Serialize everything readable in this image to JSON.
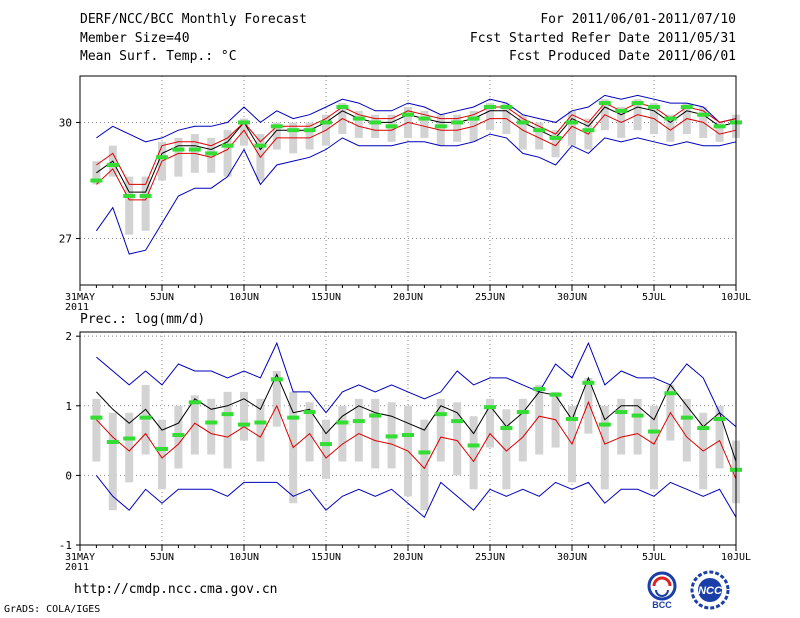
{
  "header": {
    "title": "DERF/NCC/BCC Monthly Forecast",
    "member_size": "Member Size=40",
    "variable1": "Mean Surf. Temp.: °C",
    "period": "For 2011/06/01-2011/07/10",
    "start_date": "Fcst Started Refer Date 2011/05/31",
    "produced_date": "Fcst Produced Date 2011/06/01"
  },
  "footer": {
    "url": "http://cmdp.ncc.cma.gov.cn",
    "credit": "GrADS: COLA/IGES",
    "logo_bcc": "BCC",
    "logo_ncc": "NCC"
  },
  "colors": {
    "box": "#d3d3d3",
    "median": "#33dd33",
    "mean": "#000000",
    "lower": "#dd0000",
    "env": "#0000bb"
  },
  "chart_data": [
    {
      "type": "line",
      "title": "Mean Surf. Temp.: °C",
      "x": [
        1,
        2,
        3,
        4,
        5,
        6,
        7,
        8,
        9,
        10,
        11,
        12,
        13,
        14,
        15,
        16,
        17,
        18,
        19,
        20,
        21,
        22,
        23,
        24,
        25,
        26,
        27,
        28,
        29,
        30,
        31,
        32,
        33,
        34,
        35,
        36,
        37,
        38,
        39,
        40
      ],
      "xlim": [
        0,
        40
      ],
      "ylim": [
        25.8,
        31.2
      ],
      "yticks": [
        27,
        30
      ],
      "xticks": [
        {
          "x": 0,
          "label": "31MAY"
        },
        {
          "x": 5,
          "label": "5JUN"
        },
        {
          "x": 10,
          "label": "10JUN"
        },
        {
          "x": 15,
          "label": "15JUN"
        },
        {
          "x": 20,
          "label": "20JUN"
        },
        {
          "x": 25,
          "label": "25JUN"
        },
        {
          "x": 30,
          "label": "30JUN"
        },
        {
          "x": 35,
          "label": "5JUL"
        },
        {
          "x": 40,
          "label": "10JUL"
        }
      ],
      "year_label": "2011",
      "series": [
        {
          "name": "upper envelope",
          "values": [
            29.6,
            29.9,
            29.7,
            29.5,
            29.6,
            29.8,
            29.9,
            29.9,
            30.0,
            30.4,
            30.0,
            30.3,
            30.1,
            30.2,
            30.4,
            30.6,
            30.5,
            30.3,
            30.3,
            30.5,
            30.4,
            30.2,
            30.3,
            30.4,
            30.6,
            30.5,
            30.2,
            30.1,
            30.0,
            30.3,
            30.4,
            30.7,
            30.6,
            30.7,
            30.6,
            30.5,
            30.5,
            30.4,
            30.0,
            30.1
          ]
        },
        {
          "name": "ensemble mean",
          "values": [
            28.7,
            29.0,
            28.2,
            28.2,
            29.2,
            29.4,
            29.4,
            29.3,
            29.5,
            30.0,
            29.3,
            29.8,
            29.8,
            29.8,
            30.0,
            30.3,
            30.1,
            30.0,
            30.0,
            30.2,
            30.1,
            30.0,
            30.0,
            30.1,
            30.3,
            30.3,
            30.0,
            29.8,
            29.6,
            30.1,
            29.9,
            30.4,
            30.2,
            30.4,
            30.3,
            30.0,
            30.3,
            30.2,
            29.9,
            30.0
          ]
        },
        {
          "name": "upper bound",
          "values": [
            28.9,
            29.2,
            28.4,
            28.4,
            29.4,
            29.5,
            29.5,
            29.4,
            29.6,
            30.0,
            29.5,
            29.9,
            29.9,
            29.9,
            30.1,
            30.4,
            30.2,
            30.1,
            30.1,
            30.3,
            30.2,
            30.1,
            30.1,
            30.2,
            30.4,
            30.4,
            30.1,
            29.9,
            29.7,
            30.2,
            30.0,
            30.5,
            30.3,
            30.5,
            30.4,
            30.1,
            30.4,
            30.3,
            30.0,
            30.1
          ]
        },
        {
          "name": "lower bound",
          "values": [
            28.4,
            28.8,
            28.0,
            28.0,
            29.0,
            29.2,
            29.2,
            29.1,
            29.3,
            29.8,
            29.1,
            29.6,
            29.6,
            29.6,
            29.8,
            30.1,
            29.9,
            29.8,
            29.8,
            30.0,
            29.9,
            29.8,
            29.8,
            29.9,
            30.1,
            30.1,
            29.8,
            29.6,
            29.4,
            29.9,
            29.7,
            30.2,
            30.0,
            30.2,
            30.1,
            29.8,
            30.1,
            30.0,
            29.7,
            29.8
          ]
        },
        {
          "name": "lower envelope",
          "values": [
            27.2,
            27.8,
            26.6,
            26.7,
            27.4,
            28.1,
            28.3,
            28.3,
            28.6,
            29.3,
            28.4,
            28.9,
            29.0,
            29.1,
            29.3,
            29.6,
            29.4,
            29.4,
            29.4,
            29.5,
            29.5,
            29.4,
            29.4,
            29.5,
            29.7,
            29.6,
            29.2,
            29.1,
            28.9,
            29.4,
            29.2,
            29.6,
            29.5,
            29.6,
            29.5,
            29.4,
            29.5,
            29.4,
            29.4,
            29.5
          ]
        }
      ],
      "box_high": [
        29.0,
        29.4,
        28.6,
        28.6,
        29.5,
        29.6,
        29.7,
        29.6,
        29.8,
        30.1,
        29.7,
        30.0,
        30.0,
        30.0,
        30.2,
        30.5,
        30.3,
        30.2,
        30.2,
        30.4,
        30.3,
        30.2,
        30.2,
        30.3,
        30.5,
        30.5,
        30.2,
        30.0,
        29.8,
        30.3,
        30.1,
        30.6,
        30.4,
        30.6,
        30.5,
        30.2,
        30.5,
        30.4,
        30.0,
        30.2
      ],
      "box_low": [
        28.4,
        28.6,
        27.1,
        27.2,
        28.5,
        28.6,
        28.7,
        28.7,
        28.6,
        29.4,
        28.5,
        29.3,
        29.2,
        29.3,
        29.4,
        29.7,
        29.6,
        29.6,
        29.5,
        29.6,
        29.6,
        29.4,
        29.5,
        29.5,
        29.8,
        29.7,
        29.3,
        29.3,
        29.1,
        29.4,
        29.3,
        29.8,
        29.6,
        29.8,
        29.7,
        29.5,
        29.7,
        29.6,
        29.5,
        29.6
      ],
      "medians": [
        28.5,
        28.9,
        28.1,
        28.1,
        29.1,
        29.3,
        29.3,
        29.2,
        29.4,
        30.0,
        29.4,
        29.9,
        29.8,
        29.8,
        30.0,
        30.4,
        30.1,
        30.0,
        29.9,
        30.2,
        30.1,
        29.9,
        30.0,
        30.1,
        30.4,
        30.4,
        30.0,
        29.8,
        29.6,
        30.0,
        29.8,
        30.5,
        30.3,
        30.5,
        30.4,
        30.1,
        30.4,
        30.2,
        29.9,
        30.0
      ]
    },
    {
      "type": "line",
      "title": "Prec.: log(mm/d)",
      "x": [
        1,
        2,
        3,
        4,
        5,
        6,
        7,
        8,
        9,
        10,
        11,
        12,
        13,
        14,
        15,
        16,
        17,
        18,
        19,
        20,
        21,
        22,
        23,
        24,
        25,
        26,
        27,
        28,
        29,
        30,
        31,
        32,
        33,
        34,
        35,
        36,
        37,
        38,
        39,
        40
      ],
      "xlim": [
        0,
        40
      ],
      "ylim": [
        -1,
        2.06
      ],
      "yticks": [
        -1,
        0,
        1,
        2
      ],
      "xticks": [
        {
          "x": 0,
          "label": "31MAY"
        },
        {
          "x": 5,
          "label": "5JUN"
        },
        {
          "x": 10,
          "label": "10JUN"
        },
        {
          "x": 15,
          "label": "15JUN"
        },
        {
          "x": 20,
          "label": "20JUN"
        },
        {
          "x": 25,
          "label": "25JUN"
        },
        {
          "x": 30,
          "label": "30JUN"
        },
        {
          "x": 35,
          "label": "5JUL"
        },
        {
          "x": 40,
          "label": "10JUL"
        }
      ],
      "year_label": "2011",
      "series": [
        {
          "name": "upper envelope",
          "values": [
            1.7,
            1.5,
            1.3,
            1.5,
            1.3,
            1.6,
            1.5,
            1.5,
            1.4,
            1.5,
            1.4,
            1.9,
            1.2,
            1.2,
            0.9,
            1.2,
            1.3,
            1.2,
            1.3,
            1.2,
            1.1,
            1.2,
            1.5,
            1.3,
            1.4,
            1.4,
            1.3,
            1.2,
            1.6,
            1.4,
            1.9,
            1.3,
            1.5,
            1.4,
            1.4,
            1.3,
            1.6,
            1.4,
            0.9,
            0.7
          ]
        },
        {
          "name": "ensemble mean",
          "values": [
            1.2,
            0.95,
            0.75,
            0.95,
            0.65,
            0.75,
            1.1,
            0.95,
            1.0,
            1.1,
            0.95,
            1.45,
            0.9,
            0.95,
            0.6,
            0.85,
            1.0,
            0.9,
            0.85,
            0.75,
            0.65,
            1.0,
            0.9,
            0.6,
            1.0,
            0.7,
            0.9,
            1.2,
            1.15,
            0.8,
            1.4,
            0.8,
            1.0,
            1.0,
            0.8,
            1.3,
            1.0,
            0.7,
            0.9,
            0.2
          ]
        },
        {
          "name": "lower bound",
          "values": [
            0.8,
            0.55,
            0.35,
            0.6,
            0.25,
            0.45,
            0.75,
            0.6,
            0.55,
            0.7,
            0.55,
            1.0,
            0.4,
            0.6,
            0.25,
            0.45,
            0.6,
            0.5,
            0.45,
            0.35,
            0.1,
            0.55,
            0.5,
            0.2,
            0.6,
            0.35,
            0.55,
            0.85,
            0.8,
            0.45,
            1.05,
            0.45,
            0.55,
            0.6,
            0.45,
            0.9,
            0.55,
            0.35,
            0.5,
            -0.05
          ]
        },
        {
          "name": "lower envelope",
          "values": [
            0.0,
            -0.3,
            -0.5,
            -0.2,
            -0.4,
            -0.2,
            -0.2,
            -0.2,
            -0.3,
            -0.1,
            -0.1,
            -0.1,
            -0.3,
            -0.2,
            -0.5,
            -0.3,
            -0.2,
            -0.3,
            -0.2,
            -0.4,
            -0.6,
            -0.1,
            -0.3,
            -0.5,
            -0.2,
            -0.3,
            -0.2,
            -0.3,
            -0.1,
            -0.2,
            -0.1,
            -0.4,
            -0.2,
            -0.2,
            -0.3,
            -0.1,
            -0.2,
            -0.3,
            -0.2,
            -0.6
          ]
        }
      ],
      "box_high": [
        1.1,
        0.9,
        0.9,
        1.3,
        0.8,
        1.0,
        1.15,
        1.1,
        1.2,
        1.2,
        1.1,
        1.5,
        1.2,
        1.05,
        0.8,
        1.0,
        1.1,
        1.1,
        1.05,
        1.0,
        0.8,
        1.1,
        1.05,
        0.85,
        1.1,
        0.95,
        1.1,
        1.3,
        1.2,
        1.0,
        1.4,
        1.0,
        1.1,
        1.1,
        1.0,
        1.3,
        1.1,
        0.9,
        1.0,
        0.5
      ],
      "box_low": [
        0.2,
        -0.5,
        -0.1,
        0.3,
        -0.2,
        0.1,
        0.3,
        0.3,
        0.1,
        0.5,
        0.2,
        0.7,
        -0.4,
        0.2,
        -0.05,
        0.2,
        0.2,
        0.1,
        0.1,
        -0.3,
        -0.5,
        0.2,
        0.0,
        -0.2,
        0.4,
        -0.2,
        0.2,
        0.3,
        0.4,
        -0.1,
        0.6,
        -0.2,
        0.3,
        0.3,
        -0.2,
        0.5,
        0.2,
        -0.2,
        0.1,
        -0.4
      ],
      "medians": [
        0.83,
        0.48,
        0.53,
        0.83,
        0.38,
        0.58,
        1.05,
        0.76,
        0.88,
        0.73,
        0.76,
        1.38,
        0.83,
        0.91,
        0.45,
        0.76,
        0.78,
        0.86,
        0.56,
        0.58,
        0.33,
        0.88,
        0.78,
        0.43,
        0.98,
        0.68,
        0.91,
        1.24,
        1.16,
        0.81,
        1.33,
        0.73,
        0.91,
        0.86,
        0.63,
        1.18,
        0.83,
        0.68,
        0.81,
        0.08
      ]
    }
  ]
}
